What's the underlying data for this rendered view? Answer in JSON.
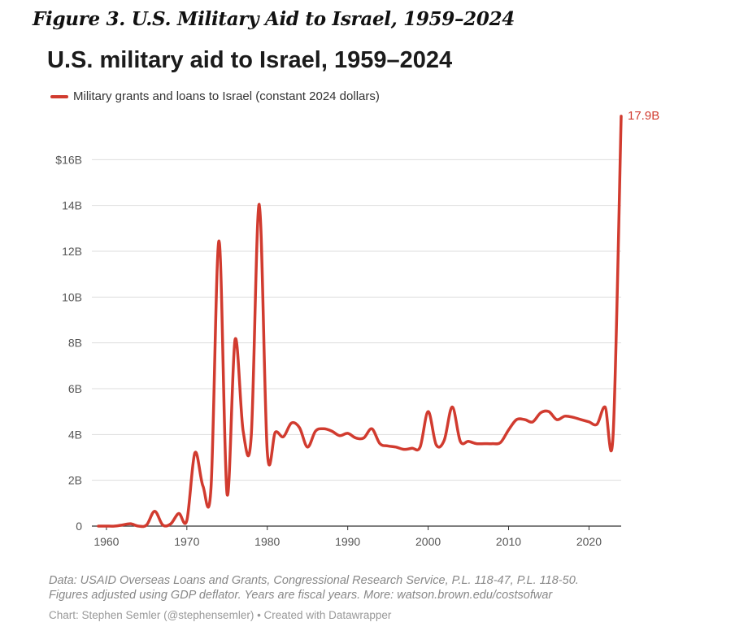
{
  "figure_caption": "Figure 3. U.S. Military Aid to Israel, 1959–2024",
  "chart_data": {
    "type": "line",
    "title": "U.S. military aid to Israel, 1959–2024",
    "legend": "Military grants and loans to Israel (constant 2024 dollars)",
    "line_color": "#d13b2f",
    "ylim": [
      0,
      18
    ],
    "xlim": [
      1959,
      2024
    ],
    "y_ticks": [
      {
        "value": 0,
        "label": "0"
      },
      {
        "value": 2,
        "label": "2B"
      },
      {
        "value": 4,
        "label": "4B"
      },
      {
        "value": 6,
        "label": "6B"
      },
      {
        "value": 8,
        "label": "8B"
      },
      {
        "value": 10,
        "label": "10B"
      },
      {
        "value": 12,
        "label": "12B"
      },
      {
        "value": 14,
        "label": "14B"
      },
      {
        "value": 16,
        "label": "$16B"
      }
    ],
    "x_ticks": [
      {
        "value": 1960,
        "label": "1960"
      },
      {
        "value": 1970,
        "label": "1970"
      },
      {
        "value": 1980,
        "label": "1980"
      },
      {
        "value": 1990,
        "label": "1990"
      },
      {
        "value": 2000,
        "label": "2000"
      },
      {
        "value": 2010,
        "label": "2010"
      },
      {
        "value": 2020,
        "label": "2020"
      }
    ],
    "x": [
      1959,
      1960,
      1961,
      1962,
      1963,
      1964,
      1965,
      1966,
      1967,
      1968,
      1969,
      1970,
      1971,
      1972,
      1973,
      1974,
      1975,
      1976,
      1977,
      1978,
      1979,
      1980,
      1981,
      1982,
      1983,
      1984,
      1985,
      1986,
      1987,
      1988,
      1989,
      1990,
      1991,
      1992,
      1993,
      1994,
      1995,
      1996,
      1997,
      1998,
      1999,
      2000,
      2001,
      2002,
      2003,
      2004,
      2005,
      2006,
      2007,
      2008,
      2009,
      2010,
      2011,
      2012,
      2013,
      2014,
      2015,
      2016,
      2017,
      2018,
      2019,
      2020,
      2021,
      2022,
      2023,
      2024
    ],
    "values": [
      0,
      0,
      0,
      0.05,
      0.1,
      0,
      0.05,
      0.65,
      0.05,
      0.1,
      0.55,
      0.25,
      3.2,
      1.75,
      1.65,
      12.45,
      1.4,
      8.15,
      4.15,
      3.9,
      14.05,
      3.25,
      4.1,
      3.9,
      4.5,
      4.3,
      3.45,
      4.15,
      4.25,
      4.15,
      3.95,
      4.05,
      3.85,
      3.85,
      4.25,
      3.6,
      3.5,
      3.45,
      3.35,
      3.4,
      3.45,
      5.0,
      3.55,
      3.75,
      5.2,
      3.7,
      3.7,
      3.6,
      3.6,
      3.6,
      3.65,
      4.2,
      4.65,
      4.65,
      4.55,
      4.95,
      5.0,
      4.65,
      4.8,
      4.75,
      4.65,
      4.55,
      4.45,
      5.2,
      4.0,
      17.9
    ],
    "end_label": "17.9B"
  },
  "footer": {
    "notes_line1": "Data: USAID Overseas Loans and Grants, Congressional Research Service, P.L. 118-47, P.L. 118-50.",
    "notes_line2": "Figures adjusted using GDP deflator. Years are fiscal years. More: watson.brown.edu/costsofwar",
    "credit": "Chart: Stephen Semler (@stephensemler) • Created with Datawrapper"
  }
}
